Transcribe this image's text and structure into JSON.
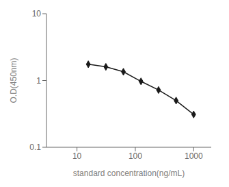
{
  "chart_data": {
    "type": "line",
    "x": [
      15.625,
      31.25,
      62.5,
      125,
      250,
      500,
      1000
    ],
    "values": [
      1.75,
      1.6,
      1.35,
      0.97,
      0.72,
      0.5,
      0.31
    ],
    "xlabel": "standard concentration(ng/mL)",
    "ylabel": "O.D(450nm)",
    "log": true,
    "xlim": [
      3,
      2000
    ],
    "ylim": [
      0.1,
      10
    ],
    "xticks": [
      10,
      100,
      1000
    ],
    "yticks": [
      0.1,
      1,
      10
    ],
    "color": "#1a1a1a",
    "marker": "diamond",
    "grid": false
  }
}
